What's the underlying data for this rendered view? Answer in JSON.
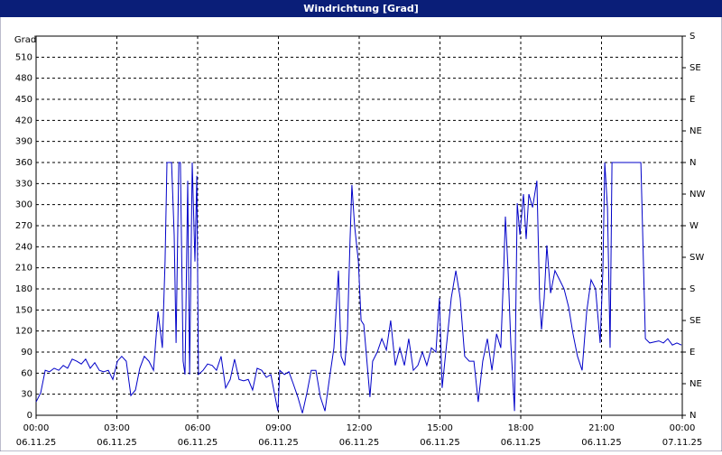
{
  "chart_data": {
    "type": "line",
    "title": "Windrichtung [Grad]",
    "ylabel": "Grad",
    "xlim": [
      0,
      24
    ],
    "xticks": [
      {
        "value": 0,
        "label": "00:00",
        "date": "06.11.25"
      },
      {
        "value": 3,
        "label": "03:00",
        "date": "06.11.25"
      },
      {
        "value": 6,
        "label": "06:00",
        "date": "06.11.25"
      },
      {
        "value": 9,
        "label": "09:00",
        "date": "06.11.25"
      },
      {
        "value": 12,
        "label": "12:00",
        "date": "06.11.25"
      },
      {
        "value": 15,
        "label": "15:00",
        "date": "06.11.25"
      },
      {
        "value": 18,
        "label": "18:00",
        "date": "06.11.25"
      },
      {
        "value": 21,
        "label": "21:00",
        "date": "06.11.25"
      },
      {
        "value": 24,
        "label": "00:00",
        "date": "07.11.25"
      }
    ],
    "ylim": [
      0,
      540
    ],
    "yticks": [
      0,
      30,
      60,
      90,
      120,
      150,
      180,
      210,
      240,
      270,
      300,
      330,
      360,
      390,
      420,
      450,
      480,
      510
    ],
    "y2lim": [
      0,
      540
    ],
    "y2ticks": [
      {
        "value": 0,
        "label": "N"
      },
      {
        "value": 45,
        "label": "NE"
      },
      {
        "value": 90,
        "label": "E"
      },
      {
        "value": 135,
        "label": "SE"
      },
      {
        "value": 180,
        "label": "S"
      },
      {
        "value": 225,
        "label": "SW"
      },
      {
        "value": 270,
        "label": "W"
      },
      {
        "value": 315,
        "label": "NW"
      },
      {
        "value": 360,
        "label": "N"
      },
      {
        "value": 405,
        "label": "NE"
      },
      {
        "value": 450,
        "label": "E"
      },
      {
        "value": 495,
        "label": "SE"
      },
      {
        "value": 540,
        "label": "S"
      }
    ],
    "grid": true,
    "x": [
      0,
      0.17,
      0.34,
      0.5,
      0.67,
      0.84,
      1.01,
      1.17,
      1.34,
      1.51,
      1.68,
      1.84,
      2.01,
      2.18,
      2.35,
      2.51,
      2.68,
      2.85,
      3.02,
      3.18,
      3.35,
      3.52,
      3.69,
      3.85,
      4.02,
      4.19,
      4.36,
      4.53,
      4.69,
      4.79,
      4.86,
      5.03,
      5.13,
      5.2,
      5.3,
      5.36,
      5.46,
      5.53,
      5.63,
      5.7,
      5.8,
      5.9,
      5.97,
      6.03,
      6.2,
      6.37,
      6.54,
      6.7,
      6.87,
      7.04,
      7.21,
      7.37,
      7.54,
      7.71,
      7.88,
      8.04,
      8.21,
      8.38,
      8.55,
      8.72,
      8.88,
      8.98,
      9.05,
      9.22,
      9.39,
      9.55,
      9.72,
      9.89,
      10.06,
      10.22,
      10.39,
      10.56,
      10.73,
      10.89,
      11.06,
      11.23,
      11.33,
      11.46,
      11.56,
      11.66,
      11.73,
      11.83,
      11.97,
      12.07,
      12.17,
      12.27,
      12.4,
      12.5,
      12.67,
      12.84,
      13.01,
      13.17,
      13.34,
      13.51,
      13.68,
      13.84,
      14.01,
      14.18,
      14.35,
      14.51,
      14.68,
      14.85,
      14.98,
      15.08,
      15.25,
      15.42,
      15.59,
      15.75,
      15.92,
      16.09,
      16.26,
      16.42,
      16.59,
      16.76,
      16.93,
      17.1,
      17.26,
      17.36,
      17.43,
      17.53,
      17.63,
      17.77,
      17.87,
      17.97,
      18.1,
      18.2,
      18.3,
      18.44,
      18.6,
      18.7,
      18.77,
      18.87,
      18.97,
      19.11,
      19.27,
      19.44,
      19.61,
      19.78,
      19.94,
      20.11,
      20.28,
      20.45,
      20.61,
      20.78,
      20.95,
      21.05,
      21.12,
      21.22,
      21.32,
      21.39,
      22.46,
      22.63,
      22.79,
      23.13,
      23.3,
      23.46,
      23.63,
      23.8,
      23.97
    ],
    "series": [
      {
        "name": "Windrichtung",
        "color": "#0000c8",
        "values": [
          19,
          32,
          64,
          62,
          67,
          64,
          71,
          67,
          80,
          77,
          73,
          80,
          67,
          75,
          64,
          62,
          64,
          51,
          77,
          84,
          77,
          28,
          36,
          67,
          84,
          77,
          64,
          148,
          96,
          219,
          360,
          360,
          257,
          103,
          360,
          360,
          77,
          58,
          334,
          58,
          360,
          219,
          341,
          58,
          64,
          73,
          71,
          64,
          84,
          39,
          51,
          80,
          51,
          49,
          51,
          36,
          67,
          64,
          54,
          58,
          26,
          6,
          64,
          58,
          62,
          45,
          26,
          3,
          32,
          64,
          64,
          26,
          6,
          51,
          96,
          206,
          84,
          71,
          116,
          251,
          328,
          270,
          219,
          135,
          129,
          84,
          26,
          77,
          90,
          109,
          93,
          135,
          71,
          96,
          71,
          109,
          64,
          71,
          90,
          71,
          96,
          90,
          167,
          39,
          103,
          167,
          206,
          167,
          84,
          77,
          77,
          19,
          77,
          109,
          64,
          116,
          96,
          199,
          283,
          206,
          103,
          6,
          302,
          257,
          315,
          251,
          315,
          296,
          334,
          167,
          122,
          167,
          242,
          174,
          206,
          193,
          180,
          154,
          116,
          84,
          64,
          148,
          193,
          180,
          103,
          206,
          360,
          296,
          96,
          360,
          360,
          109,
          103,
          106,
          103,
          109,
          100,
          103,
          100
        ]
      }
    ]
  }
}
